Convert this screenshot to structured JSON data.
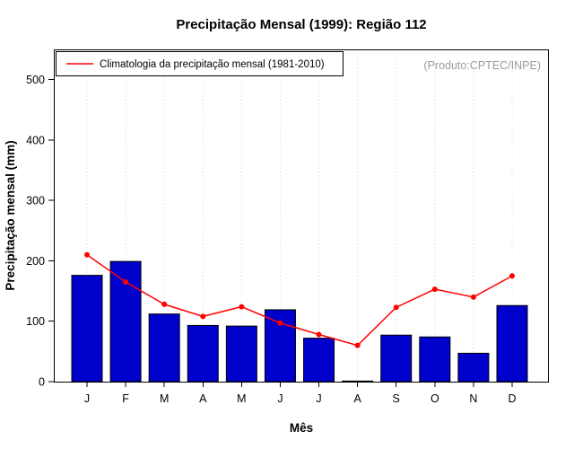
{
  "title": "Precipitação Mensal (1999): Região 112",
  "annotation": "(Produto:CPTEC/INPE)",
  "legend": {
    "label": "Climatologia da precipitação mensal (1981-2010)"
  },
  "chart_data": {
    "type": "bar",
    "title": "Precipitação Mensal (1999): Região 112",
    "categories": [
      "J",
      "F",
      "M",
      "A",
      "M",
      "J",
      "J",
      "A",
      "S",
      "O",
      "N",
      "D"
    ],
    "series": [
      {
        "name": "Precipitação mensal 1999",
        "type": "bar",
        "color": "#0000cc",
        "values": [
          176,
          199,
          112,
          93,
          92,
          119,
          72,
          1,
          77,
          74,
          47,
          126
        ]
      },
      {
        "name": "Climatologia da precipitação mensal (1981-2010)",
        "type": "line",
        "color": "#ff0000",
        "values": [
          210,
          165,
          128,
          108,
          124,
          97,
          78,
          60,
          123,
          153,
          140,
          175
        ]
      }
    ],
    "xlabel": "Mês",
    "ylabel": "Precipitação mensal (mm)",
    "ylim": [
      0,
      550
    ],
    "yticks": [
      0,
      100,
      200,
      300,
      400,
      500
    ],
    "grid": "vertical-dotted",
    "legend_position": "top-left"
  }
}
